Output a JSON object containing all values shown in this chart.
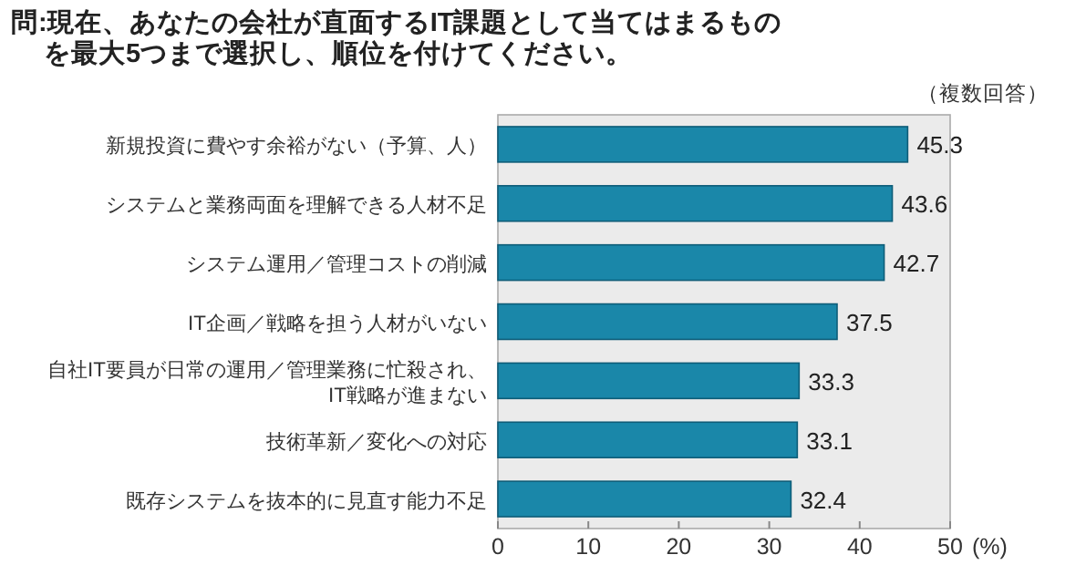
{
  "chart_data": {
    "type": "bar",
    "orientation": "horizontal",
    "title": "問:現在、あなたの会社が直面するIT課題として当てはまるものを最大5つまで選択し、順位を付けてください。",
    "categories": [
      "新規投資に費やす余裕がない（予算、人）",
      "システムと業務両面を理解できる人材不足",
      "システム運用／管理コストの削減",
      "IT企画／戦略を担う人材がいない",
      "自社IT要員が日常の運用／管理業務に忙殺され、IT戦略が進まない",
      "技術革新／変化への対応",
      "既存システムを抜本的に見直す能力不足"
    ],
    "values": [
      45.3,
      43.6,
      42.7,
      37.5,
      33.3,
      33.1,
      32.4
    ],
    "color": "#1a87a9",
    "xlim": [
      0,
      50
    ],
    "xticks": [
      0,
      10,
      20,
      30,
      40,
      50
    ],
    "xlabel": "(%)",
    "grid": false,
    "data_labels": true,
    "annotations": [
      "（複数回答）"
    ]
  }
}
